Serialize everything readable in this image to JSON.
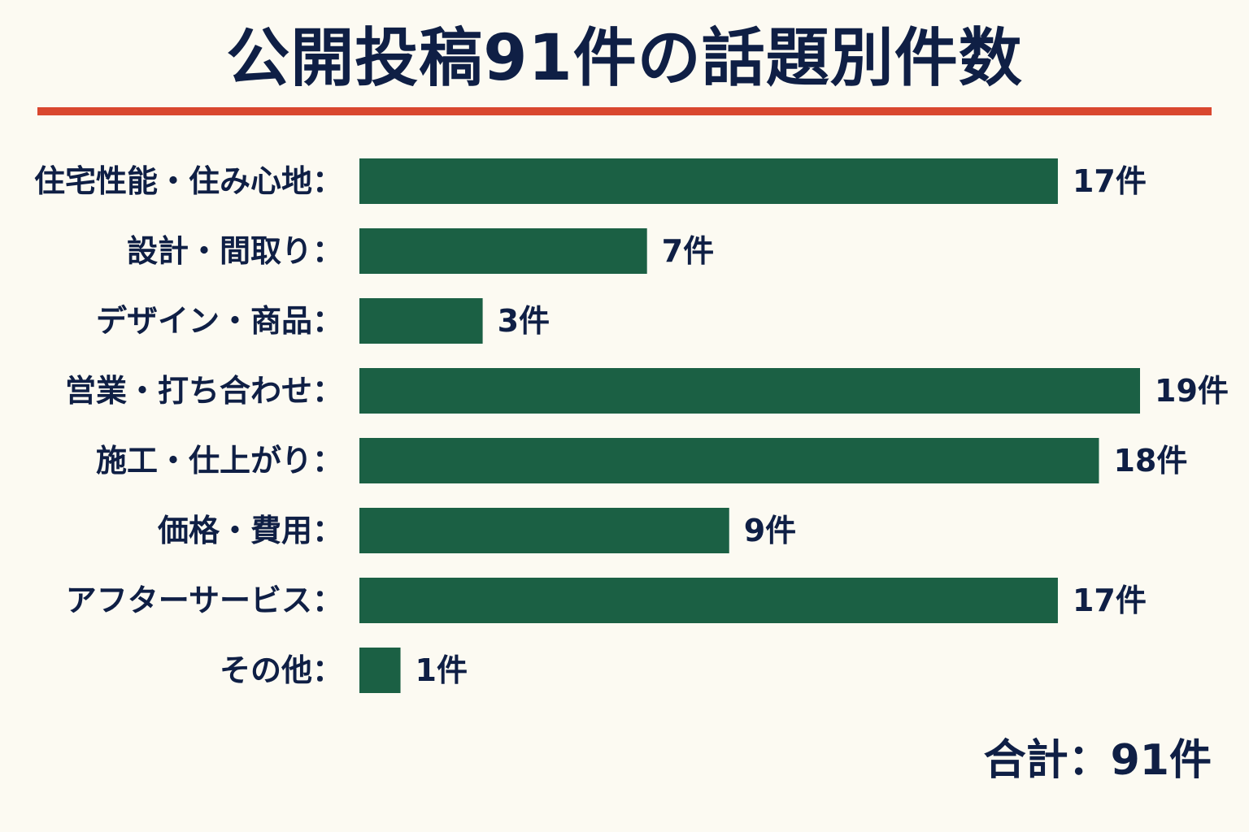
{
  "chart_data": {
    "type": "bar",
    "orientation": "horizontal",
    "title": "公開投稿91件の話題別件数",
    "categories": [
      "住宅性能・住み心地",
      "設計・間取り",
      "デザイン・商品",
      "営業・打ち合わせ",
      "施工・仕上がり",
      "価格・費用",
      "アフターサービス",
      "その他"
    ],
    "values": [
      17,
      7,
      3,
      19,
      18,
      9,
      17,
      1
    ],
    "category_suffix": "：",
    "value_suffix": "件",
    "xlim": [
      0,
      19
    ],
    "grid": false,
    "colors": {
      "bar": "#1b6044",
      "text": "#0f1f45",
      "rule": "#d9472f",
      "background": "#fcfaf2"
    }
  },
  "footer": {
    "total_text": "合計：91件"
  }
}
